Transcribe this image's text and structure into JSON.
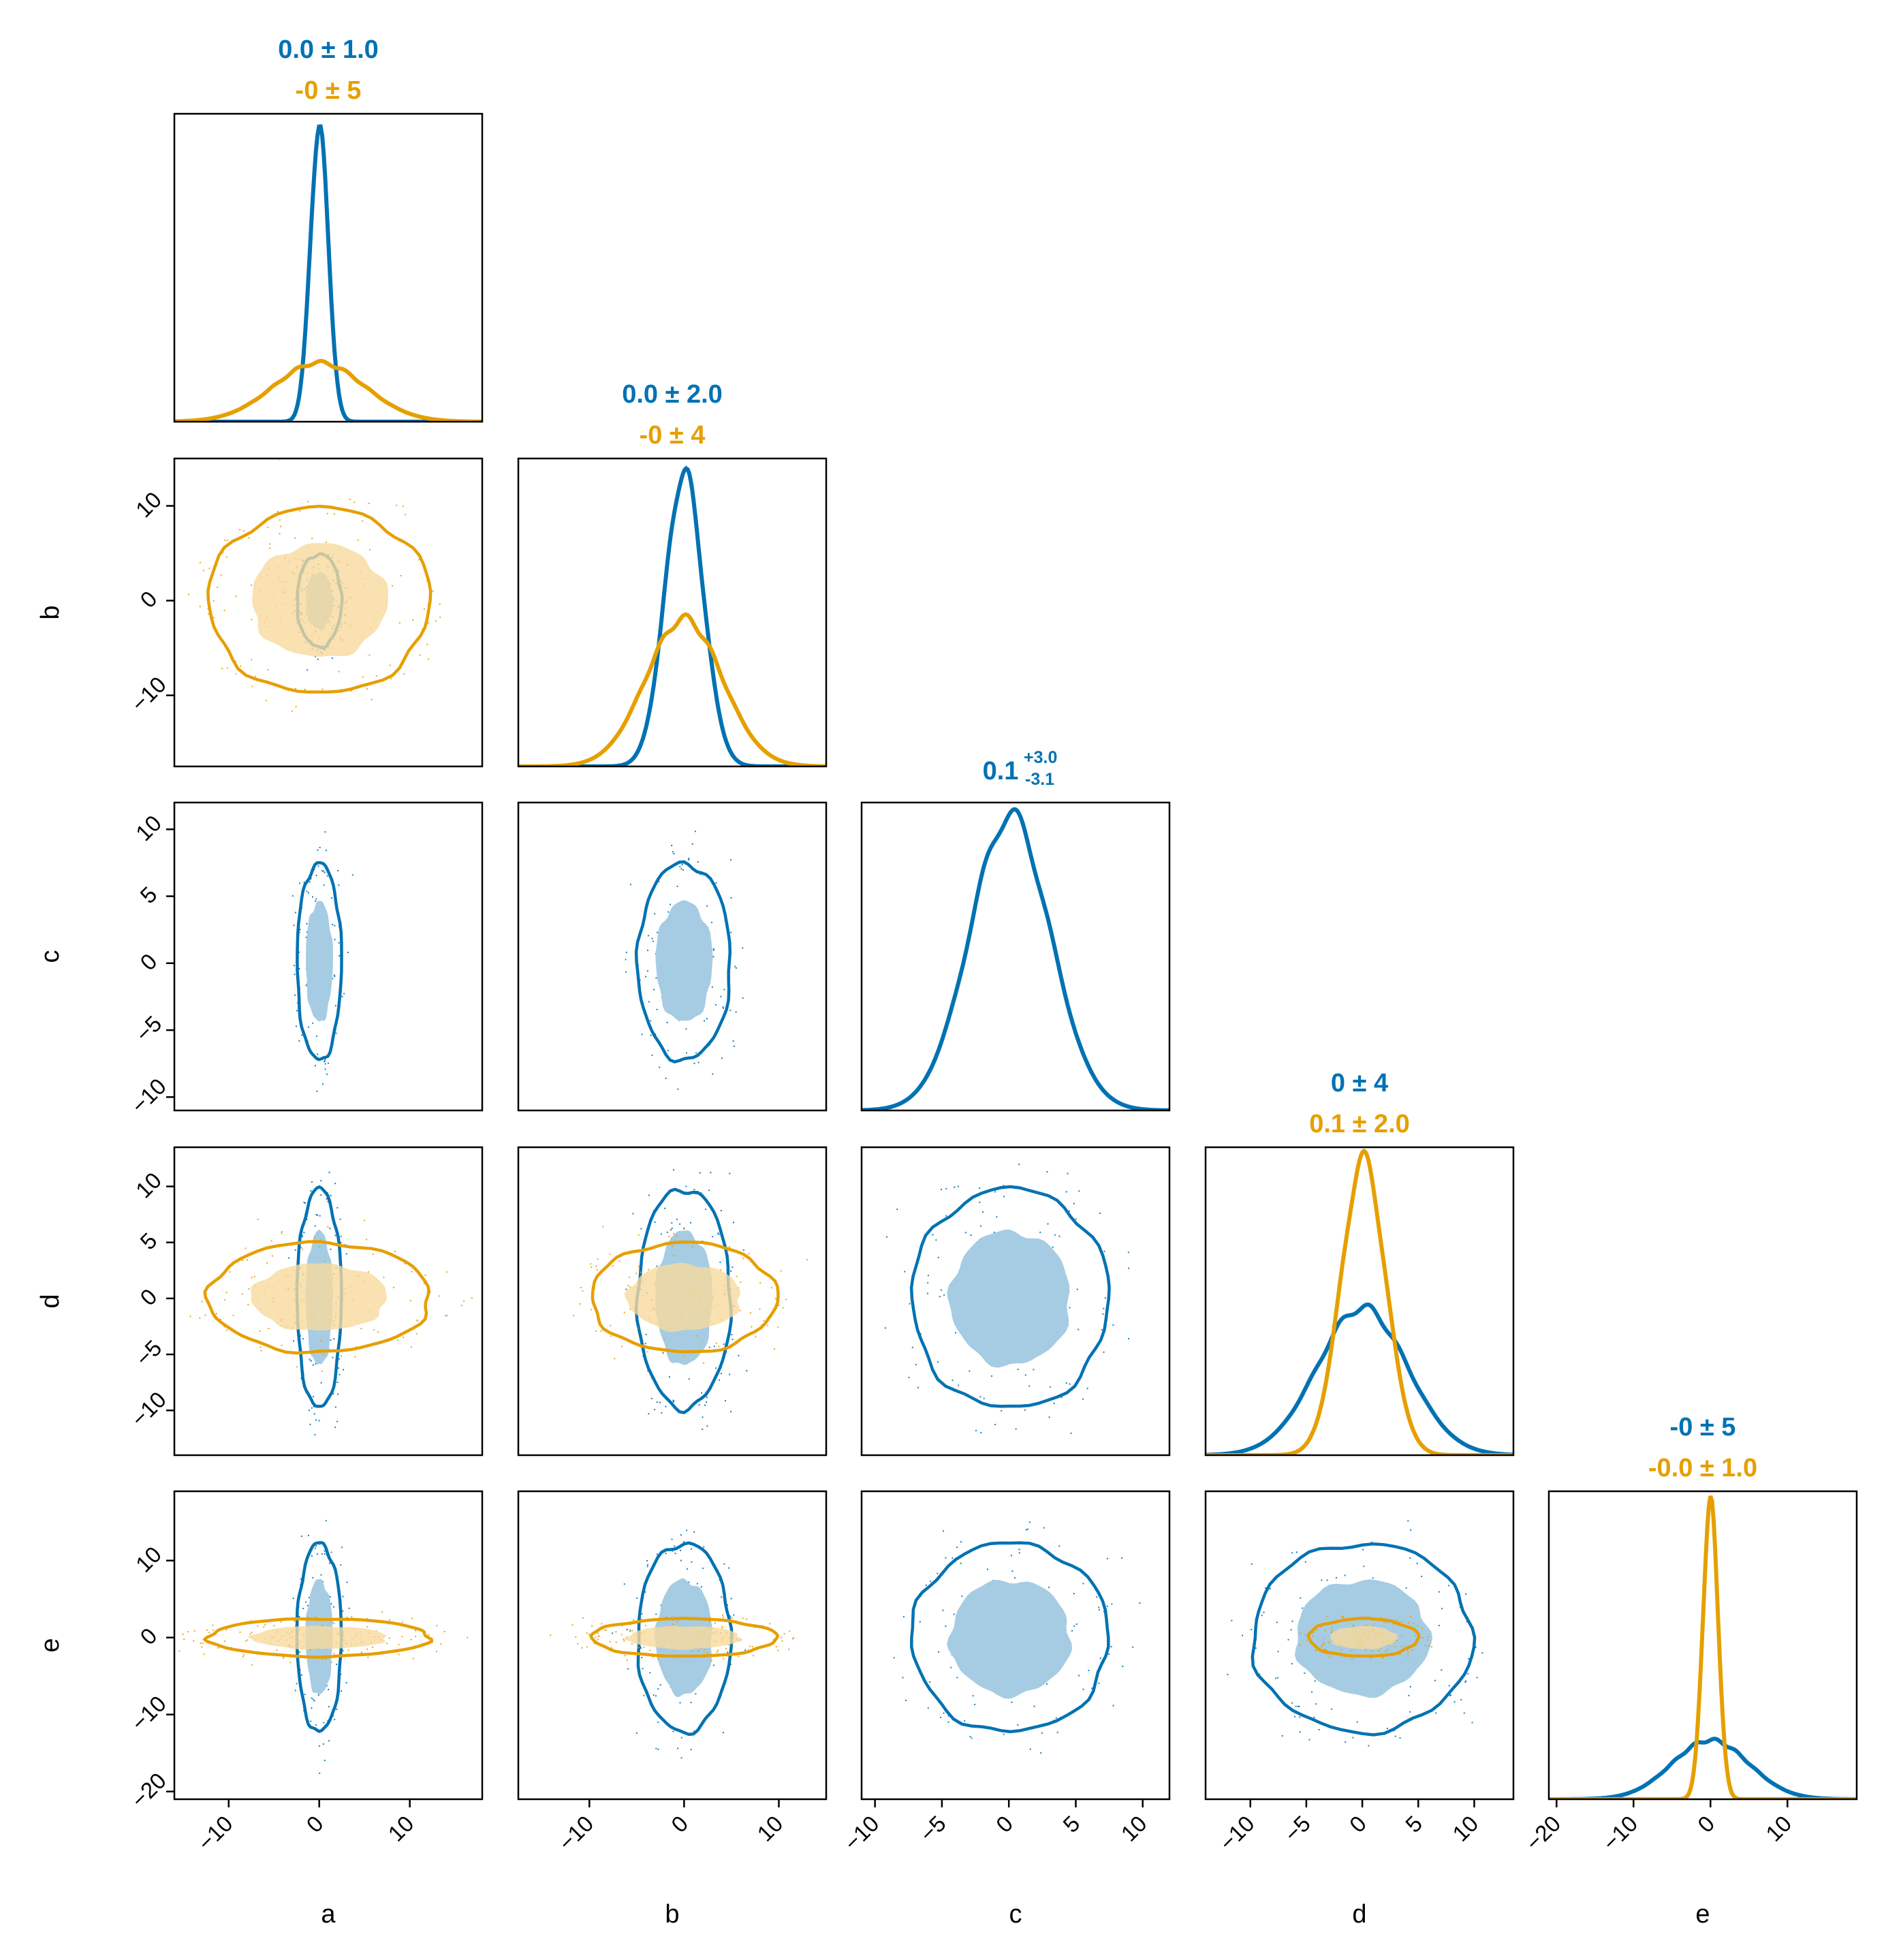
{
  "colors": {
    "series1": "#0072b2",
    "series2": "#e69f00",
    "fill1": "#a6cce4",
    "fill2": "#f7d99e"
  },
  "chart_data": {
    "type": "corner",
    "parameters": [
      "a",
      "b",
      "c",
      "d",
      "e"
    ],
    "ranges": {
      "a": [
        -16,
        18
      ],
      "b": [
        -17.5,
        15
      ],
      "c": [
        -11,
        12
      ],
      "d": [
        -14,
        13.5
      ],
      "e": [
        -21,
        19
      ]
    },
    "ticks": {
      "a": [
        "-10",
        "0",
        "10"
      ],
      "b": [
        "-10",
        "0",
        "10"
      ],
      "c": [
        "-10",
        "-5",
        "0",
        "5",
        "10"
      ],
      "d": [
        "-10",
        "-5",
        "0",
        "5",
        "10"
      ],
      "e": [
        "-20",
        "-10",
        "0",
        "10"
      ]
    },
    "tick_values": {
      "a": [
        -10,
        0,
        10
      ],
      "b": [
        -10,
        0,
        10
      ],
      "c": [
        -10,
        -5,
        0,
        5,
        10
      ],
      "d": [
        -10,
        -5,
        0,
        5,
        10
      ],
      "e": [
        -20,
        -10,
        0,
        10
      ]
    },
    "series": [
      {
        "color": "#0072b2",
        "params": [
          "a",
          "b",
          "c",
          "d",
          "e"
        ],
        "sigma": {
          "a": 1.0,
          "b": 2.0,
          "c": 3.0,
          "d": 4.0,
          "e": 5.0
        },
        "mean": {
          "a": 0.0,
          "b": 0.0,
          "c": 0.1,
          "d": 0.0,
          "e": 0.0
        }
      },
      {
        "color": "#e69f00",
        "params": [
          "a",
          "b",
          "d",
          "e"
        ],
        "sigma": {
          "a": 5.0,
          "b": 4.0,
          "d": 2.0,
          "e": 1.0
        },
        "mean": {
          "a": 0.0,
          "b": 0.0,
          "d": 0.1,
          "e": 0.0
        }
      }
    ],
    "annotations": {
      "a": [
        {
          "text": "0.0 ± 1.0",
          "color": "#0072b2"
        },
        {
          "text": "-0 ± 5",
          "color": "#e69f00"
        }
      ],
      "b": [
        {
          "text": "0.0 ± 2.0",
          "color": "#0072b2"
        },
        {
          "text": "-0 ± 4",
          "color": "#e69f00"
        }
      ],
      "c": [
        {
          "text": "0.1",
          "sup": "+3.0",
          "sub": "-3.1",
          "color": "#0072b2"
        }
      ],
      "d": [
        {
          "text": "0 ± 4",
          "color": "#0072b2"
        },
        {
          "text": "0.1 ± 2.0",
          "color": "#e69f00"
        }
      ],
      "e": [
        {
          "text": "-0 ± 5",
          "color": "#0072b2"
        },
        {
          "text": "-0.0 ± 1.0",
          "color": "#e69f00"
        }
      ]
    }
  }
}
